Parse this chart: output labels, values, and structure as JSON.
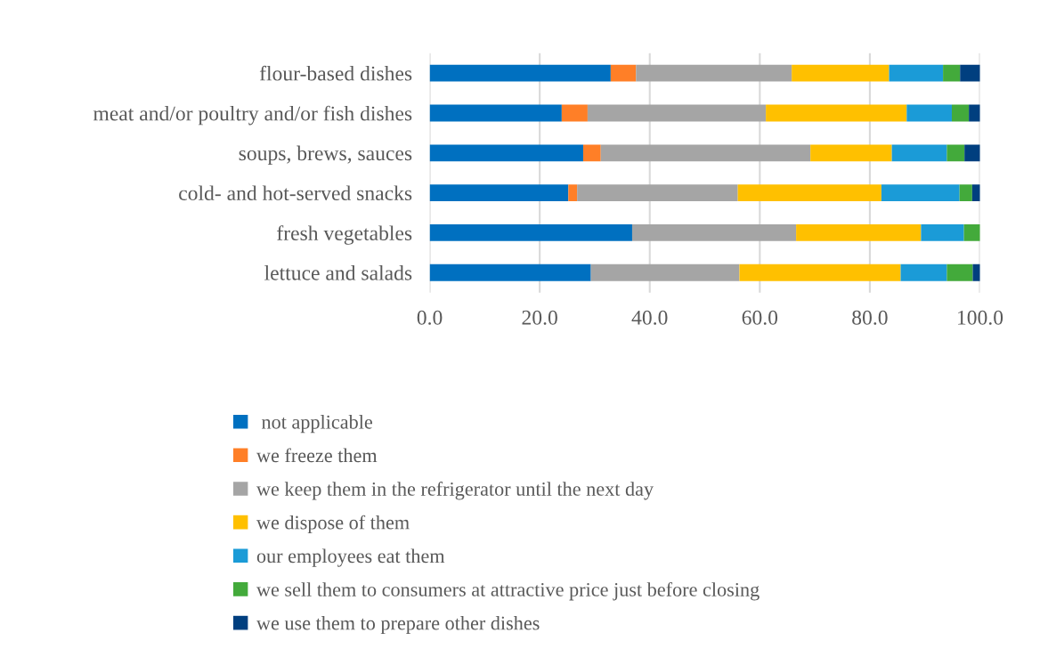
{
  "chart_data": {
    "type": "bar",
    "orientation": "horizontal",
    "stacked": true,
    "categories": [
      "flour-based dishes",
      "meat and/or poultry and/or fish dishes",
      "soups, brews, sauces",
      "cold- and hot-served snacks",
      "fresh vegetables",
      "lettuce and salads"
    ],
    "series": [
      {
        "name": " not applicable",
        "color": "#0070c0",
        "values": [
          32.9,
          24.0,
          27.9,
          25.2,
          36.8,
          29.3
        ]
      },
      {
        "name": "we freeze them",
        "color": "#ff7f27",
        "values": [
          4.6,
          4.7,
          3.2,
          1.6,
          0,
          0
        ]
      },
      {
        "name": "we keep them in the refrigerator until the next day",
        "color": "#a5a5a5",
        "values": [
          28.3,
          32.4,
          38.1,
          29.2,
          29.8,
          27.0
        ]
      },
      {
        "name": "we dispose of them",
        "color": "#ffc000",
        "values": [
          17.7,
          25.6,
          14.8,
          26.1,
          22.7,
          29.3
        ]
      },
      {
        "name": "our employees eat them",
        "color": "#1b9bd7",
        "values": [
          9.8,
          8.2,
          10.0,
          14.2,
          7.8,
          8.4
        ]
      },
      {
        "name": "we sell them to consumers at attractive price just before closing",
        "color": "#43aa3b",
        "values": [
          3.1,
          3.1,
          3.2,
          2.3,
          3.1,
          4.7
        ]
      },
      {
        "name": "we use them to prepare other dishes",
        "color": "#003f7f",
        "values": [
          3.8,
          2.2,
          3.0,
          1.6,
          0,
          1.5
        ]
      }
    ],
    "xlim": [
      0,
      100
    ],
    "xticks": [
      {
        "value": 0,
        "label": "0.0"
      },
      {
        "value": 20,
        "label": "20.0"
      },
      {
        "value": 40,
        "label": "40.0"
      },
      {
        "value": 60,
        "label": "60.0"
      },
      {
        "value": 80,
        "label": "80.0"
      },
      {
        "value": 100,
        "label": "100.0"
      }
    ],
    "grid": "x",
    "legend": "bottom"
  }
}
